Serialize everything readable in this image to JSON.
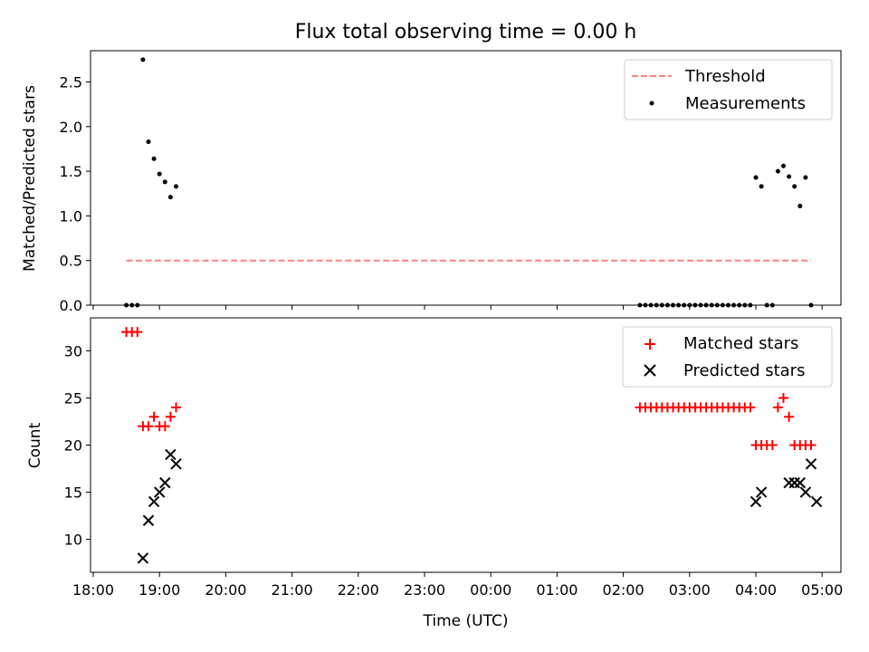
{
  "chart_data": [
    {
      "type": "scatter",
      "title": "Flux total observing time = 0.00 h",
      "ylabel": "Matched/Predicted stars",
      "xlabel": "",
      "ylim": [
        0,
        2.85
      ],
      "y_ticks": [
        "0.0",
        "0.5",
        "1.0",
        "1.5",
        "2.0",
        "2.5"
      ],
      "x_ticks": [
        "18:00",
        "19:00",
        "20:00",
        "21:00",
        "22:00",
        "23:00",
        "00:00",
        "01:00",
        "02:00",
        "03:00",
        "04:00",
        "05:00"
      ],
      "legend_position": "top-right",
      "grid": false,
      "series": [
        {
          "name": "Threshold",
          "style": "dashed-line",
          "color": "#ff7f7f",
          "x": [
            "18:30",
            "04:50"
          ],
          "values": [
            0.5,
            0.5
          ]
        },
        {
          "name": "Measurements",
          "style": "dot",
          "color": "#000000",
          "x": [
            "18:30",
            "18:35",
            "18:40",
            "18:45",
            "18:50",
            "18:55",
            "19:00",
            "19:05",
            "19:10",
            "19:15",
            "02:15",
            "02:20",
            "02:25",
            "02:30",
            "02:35",
            "02:40",
            "02:45",
            "02:50",
            "02:55",
            "03:00",
            "03:05",
            "03:10",
            "03:15",
            "03:20",
            "03:25",
            "03:30",
            "03:35",
            "03:40",
            "03:45",
            "03:50",
            "03:55",
            "04:00",
            "04:05",
            "04:10",
            "04:15",
            "04:20",
            "04:25",
            "04:30",
            "04:35",
            "04:40",
            "04:45",
            "04:50"
          ],
          "values": [
            0,
            0,
            0,
            2.75,
            1.83,
            1.64,
            1.47,
            1.38,
            1.21,
            1.33,
            0,
            0,
            0,
            0,
            0,
            0,
            0,
            0,
            0,
            0,
            0,
            0,
            0,
            0,
            0,
            0,
            0,
            0,
            0,
            0,
            0,
            1.43,
            1.33,
            0,
            0,
            1.5,
            1.56,
            1.44,
            1.33,
            1.11,
            1.43,
            0
          ]
        }
      ]
    },
    {
      "type": "scatter",
      "title": "",
      "ylabel": "Count",
      "xlabel": "Time (UTC)",
      "ylim": [
        6.5,
        33.5
      ],
      "y_ticks": [
        "10",
        "15",
        "20",
        "25",
        "30"
      ],
      "x_ticks": [
        "18:00",
        "19:00",
        "20:00",
        "21:00",
        "22:00",
        "23:00",
        "00:00",
        "01:00",
        "02:00",
        "03:00",
        "04:00",
        "05:00"
      ],
      "legend_position": "top-right",
      "grid": false,
      "series": [
        {
          "name": "Matched stars",
          "marker": "plus",
          "color": "#ff0000",
          "x": [
            "18:30",
            "18:35",
            "18:40",
            "18:45",
            "18:50",
            "18:55",
            "19:00",
            "19:05",
            "19:10",
            "19:15",
            "02:15",
            "02:20",
            "02:25",
            "02:30",
            "02:35",
            "02:40",
            "02:45",
            "02:50",
            "02:55",
            "03:00",
            "03:05",
            "03:10",
            "03:15",
            "03:20",
            "03:25",
            "03:30",
            "03:35",
            "03:40",
            "03:45",
            "03:50",
            "03:55",
            "04:00",
            "04:05",
            "04:10",
            "04:15",
            "04:20",
            "04:25",
            "04:30",
            "04:35",
            "04:40",
            "04:45",
            "04:50"
          ],
          "values": [
            32,
            32,
            32,
            22,
            22,
            23,
            22,
            22,
            23,
            24,
            24,
            24,
            24,
            24,
            24,
            24,
            24,
            24,
            24,
            24,
            24,
            24,
            24,
            24,
            24,
            24,
            24,
            24,
            24,
            24,
            24,
            20,
            20,
            20,
            20,
            24,
            25,
            23,
            20,
            20,
            20,
            20
          ]
        },
        {
          "name": "Predicted stars",
          "marker": "x",
          "color": "#000000",
          "x": [
            "18:45",
            "18:50",
            "18:55",
            "19:00",
            "19:05",
            "19:10",
            "19:15",
            "04:00",
            "04:05",
            "04:30",
            "04:35",
            "04:40",
            "04:45",
            "04:50",
            "04:55"
          ],
          "values": [
            8,
            12,
            14,
            15,
            16,
            19,
            18,
            14,
            15,
            16,
            16,
            16,
            15,
            18,
            14
          ]
        }
      ]
    }
  ]
}
